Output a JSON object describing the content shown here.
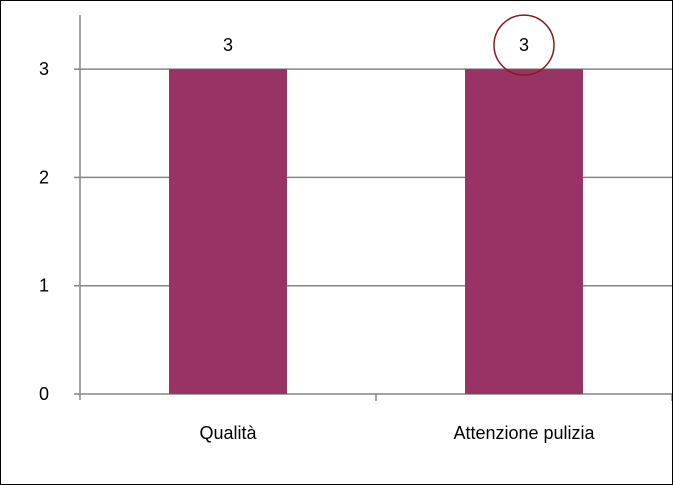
{
  "chart_data": {
    "type": "bar",
    "categories": [
      "Qualità",
      "Attenzione pulizia"
    ],
    "values": [
      3,
      3
    ],
    "data_labels": [
      "3",
      "3"
    ],
    "ylim": [
      0,
      3.5
    ],
    "yticks": [
      {
        "value": 0,
        "label": "0"
      },
      {
        "value": 1,
        "label": "1"
      },
      {
        "value": 2,
        "label": "2"
      },
      {
        "value": 3,
        "label": "3"
      }
    ],
    "grid": true,
    "legend": "none",
    "bar_color": "#993366",
    "gridline_color": "#868686",
    "annotation_color": "#8B1A1A",
    "highlighted_label_index": 1
  }
}
